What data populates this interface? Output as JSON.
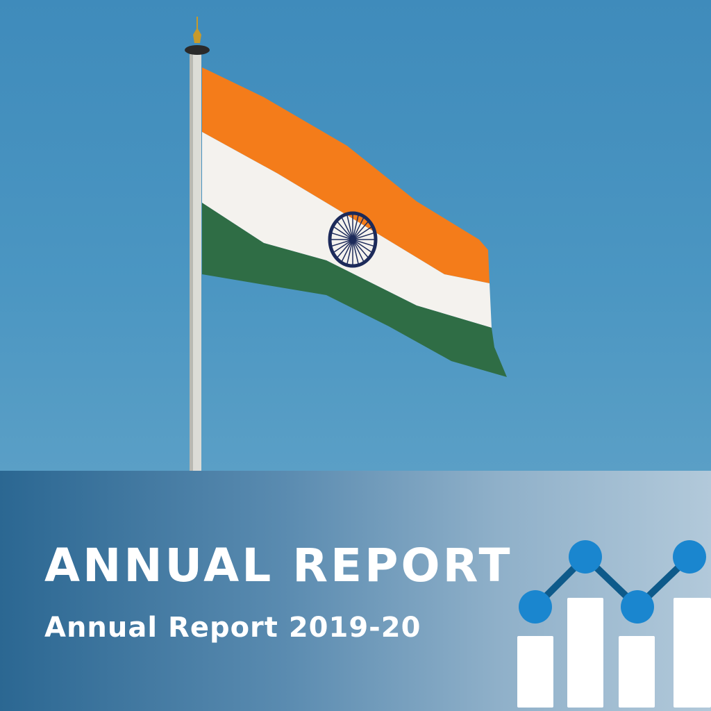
{
  "cover": {
    "title": "ANNUAL REPORT",
    "subtitle": "Annual Report 2019-20"
  },
  "image": {
    "subject": "flag-of-india-on-pole",
    "colors": {
      "sky": "#4b96c2",
      "saffron": "#f47c1a",
      "white": "#f4f2ee",
      "green": "#2f6d45",
      "chakra": "#1c2a5a"
    }
  },
  "chart_icon": {
    "icon": "bar-and-line-chart-icon",
    "colors": {
      "bars": "#ffffff",
      "points": "#1a86cf",
      "line": "#0e5a8a"
    }
  },
  "colors": {
    "panel_start": "#2b6792",
    "panel_end": "#b2c9da",
    "text": "#ffffff"
  }
}
